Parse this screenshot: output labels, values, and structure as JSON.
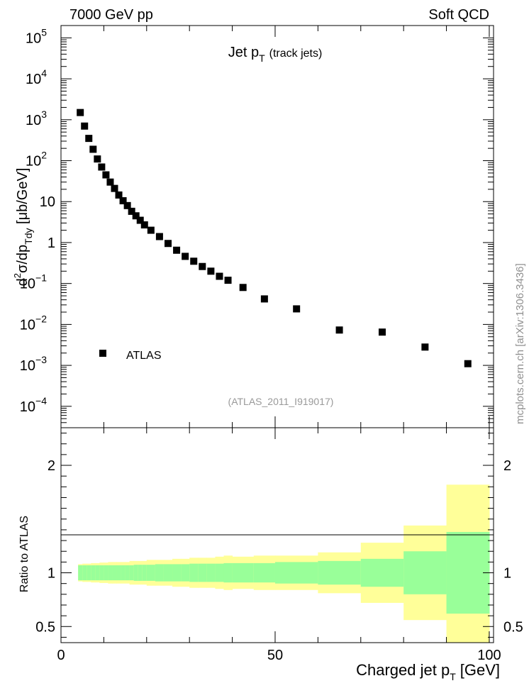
{
  "header": {
    "left": "7000 GeV pp",
    "right": "Soft QCD"
  },
  "top_panel": {
    "title": "Jet p",
    "title_sub": "T",
    "title_suffix": "(track jets)",
    "ylabel_parts": [
      "d",
      "2",
      "σ/dp",
      "Tdy",
      " [μb/GeV]"
    ],
    "analysis_tag": "(ATLAS_2011_I919017)",
    "legend_label": "ATLAS",
    "ylim": [
      3e-05,
      200000.0
    ],
    "log_scale": true,
    "y_ticks": [
      {
        "value": 100000.0,
        "base": "10",
        "exp": "5"
      },
      {
        "value": 10000.0,
        "base": "10",
        "exp": "4"
      },
      {
        "value": 1000.0,
        "base": "10",
        "exp": "3"
      },
      {
        "value": 100.0,
        "base": "10",
        "exp": "2"
      },
      {
        "value": 10,
        "base": "10",
        "exp": ""
      },
      {
        "value": 1,
        "base": "1",
        "exp": ""
      },
      {
        "value": 0.1,
        "base": "10",
        "exp": "−1"
      },
      {
        "value": 0.01,
        "base": "10",
        "exp": "−2"
      },
      {
        "value": 0.001,
        "base": "10",
        "exp": "−3"
      },
      {
        "value": 0.0001,
        "base": "10",
        "exp": "−4"
      }
    ]
  },
  "bottom_panel": {
    "ylabel": "Ratio to ATLAS",
    "ylim": [
      0.35,
      2.35
    ],
    "y_ticks": [
      "0.5",
      "1",
      "2"
    ],
    "y_tick_values": [
      0.5,
      1,
      2
    ]
  },
  "x_axis": {
    "label": "Charged jet p",
    "label_sub": "T",
    "label_suffix": "[GeV]",
    "xlim": [
      0,
      101
    ],
    "ticks": [
      "0",
      "50",
      "100"
    ],
    "tick_values": [
      0,
      50,
      100
    ]
  },
  "side_note": "mcplots.cern.ch [arXiv:1306.3436]",
  "chart_data": {
    "type": "scatter",
    "title": "Jet pT (track jets)",
    "xlabel": "Charged jet pT [GeV]",
    "ylabel": "d2σ/dpTdy [μb/GeV]",
    "series": [
      {
        "name": "ATLAS",
        "x": [
          4.5,
          5.5,
          6.5,
          7.5,
          8.5,
          9.5,
          10.5,
          11.5,
          12.5,
          13.5,
          14.5,
          15.5,
          16.5,
          17.5,
          18.5,
          19.5,
          21,
          23,
          25,
          27,
          29,
          31,
          33,
          35,
          37,
          39,
          42.5,
          47.5,
          55,
          65,
          75,
          85,
          95
        ],
        "values": [
          1500,
          700,
          350,
          190,
          110,
          70,
          45,
          30,
          21,
          14.5,
          10.5,
          8,
          5.8,
          4.5,
          3.5,
          2.7,
          2.0,
          1.4,
          0.95,
          0.65,
          0.46,
          0.35,
          0.26,
          0.2,
          0.15,
          0.12,
          0.08,
          0.042,
          0.024,
          0.0073,
          0.0065,
          0.0028,
          0.0011
        ]
      }
    ],
    "ratio_bands": {
      "edges": [
        4,
        5,
        6,
        7,
        8,
        9,
        10,
        11,
        12,
        13,
        14,
        15,
        16,
        17,
        18,
        19,
        20,
        22,
        24,
        26,
        28,
        30,
        32,
        34,
        36,
        38,
        40,
        45,
        50,
        60,
        70,
        80,
        90,
        100
      ],
      "inner_half_width": [
        0.07,
        0.07,
        0.07,
        0.07,
        0.07,
        0.07,
        0.07,
        0.07,
        0.07,
        0.07,
        0.07,
        0.07,
        0.07,
        0.075,
        0.075,
        0.075,
        0.075,
        0.08,
        0.08,
        0.08,
        0.08,
        0.085,
        0.085,
        0.085,
        0.085,
        0.09,
        0.09,
        0.09,
        0.1,
        0.11,
        0.13,
        0.2,
        0.38
      ],
      "outer_half_width": [
        0.08,
        0.085,
        0.085,
        0.09,
        0.09,
        0.095,
        0.095,
        0.1,
        0.1,
        0.1,
        0.1,
        0.1,
        0.11,
        0.11,
        0.11,
        0.11,
        0.12,
        0.12,
        0.12,
        0.13,
        0.13,
        0.14,
        0.14,
        0.14,
        0.15,
        0.16,
        0.15,
        0.16,
        0.16,
        0.19,
        0.28,
        0.44,
        0.82
      ]
    }
  }
}
